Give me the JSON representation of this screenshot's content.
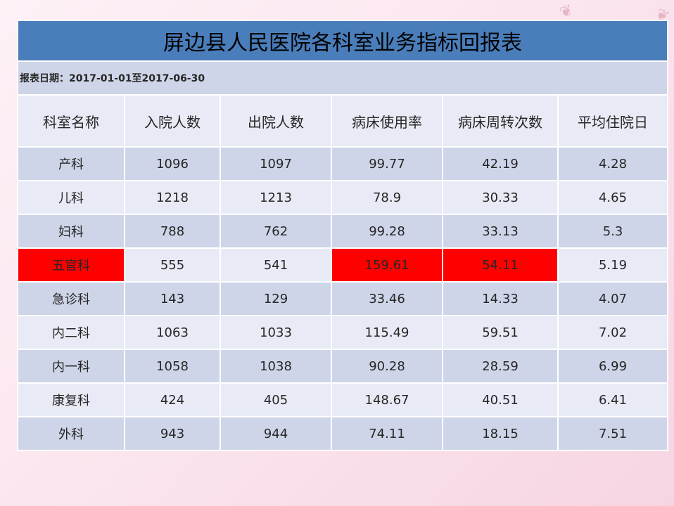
{
  "title": "屏边县人民医院各科室业务指标回报表",
  "date_label": "报表日期：",
  "date_range": "2017-01-01至2017-06-30",
  "columns": [
    "科室名称",
    "入院人数",
    "出院人数",
    "病床使用率",
    "病床周转次数",
    "平均住院日"
  ],
  "rows": [
    [
      "产科",
      "1096",
      "1097",
      "99.77",
      "42.19",
      "4.28"
    ],
    [
      "儿科",
      "1218",
      "1213",
      "78.9",
      "30.33",
      "4.65"
    ],
    [
      "妇科",
      "788",
      "762",
      "99.28",
      "33.13",
      "5.3"
    ],
    [
      "五官科",
      "555",
      "541",
      "159.61",
      "54.11",
      "5.19"
    ],
    [
      "急诊科",
      "143",
      "129",
      "33.46",
      "14.33",
      "4.07"
    ],
    [
      "内二科",
      "1063",
      "1033",
      "115.49",
      "59.51",
      "7.02"
    ],
    [
      "内一科",
      "1058",
      "1038",
      "90.28",
      "28.59",
      "6.99"
    ],
    [
      "康复科",
      "424",
      "405",
      "148.67",
      "40.51",
      "6.41"
    ],
    [
      "外科",
      "943",
      "944",
      "74.11",
      "18.15",
      "7.51"
    ]
  ],
  "highlight": {
    "color": "#ff0000",
    "cells": [
      [
        3,
        0
      ],
      [
        3,
        3
      ],
      [
        3,
        4
      ]
    ]
  },
  "colors": {
    "title_bg": "#4a7ebb",
    "row_dark": "#cfd5e8",
    "row_light": "#e8ebf5"
  }
}
